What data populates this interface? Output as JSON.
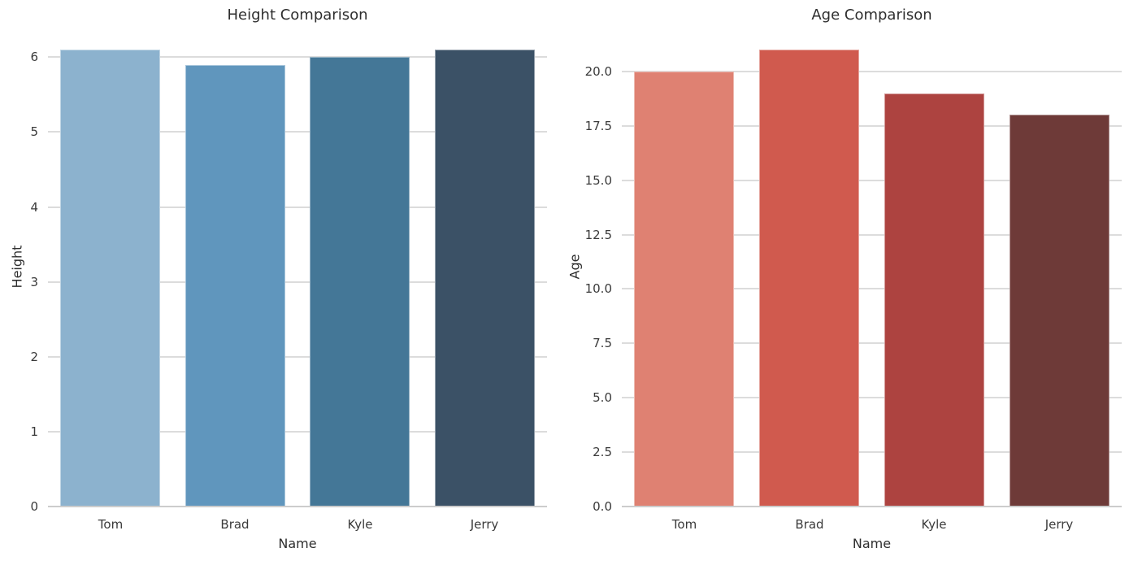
{
  "style": {
    "background": "#ffffff",
    "grid_color": "#dcdcdc",
    "axis_line_color": "#cccccc",
    "text_color": "#262626"
  },
  "chart_data": [
    {
      "type": "bar",
      "title": "Height Comparison",
      "xlabel": "Name",
      "ylabel": "Height",
      "categories": [
        "Tom",
        "Brad",
        "Kyle",
        "Jerry"
      ],
      "values": [
        6.1,
        5.9,
        6.0,
        6.1
      ],
      "ylim": [
        0,
        6.405
      ],
      "yticks": [
        0,
        1,
        2,
        3,
        4,
        5,
        6
      ],
      "ytick_labels": [
        "0",
        "1",
        "2",
        "3",
        "4",
        "5",
        "6"
      ],
      "bar_colors": [
        "#8cb2ce",
        "#6096bd",
        "#447797",
        "#3b5166"
      ],
      "grid": "horizontal",
      "legend": "none"
    },
    {
      "type": "bar",
      "title": "Age Comparison",
      "xlabel": "Name",
      "ylabel": "Age",
      "categories": [
        "Tom",
        "Brad",
        "Kyle",
        "Jerry"
      ],
      "values": [
        20,
        21,
        19,
        18
      ],
      "ylim": [
        0,
        22.05
      ],
      "yticks": [
        0,
        2.5,
        5,
        7.5,
        10,
        12.5,
        15,
        17.5,
        20
      ],
      "ytick_labels": [
        "0.0",
        "2.5",
        "5.0",
        "7.5",
        "10.0",
        "12.5",
        "15.0",
        "17.5",
        "20.0"
      ],
      "bar_colors": [
        "#df8172",
        "#d05a4e",
        "#ad4340",
        "#6e3a38"
      ],
      "grid": "horizontal",
      "legend": "none"
    }
  ]
}
